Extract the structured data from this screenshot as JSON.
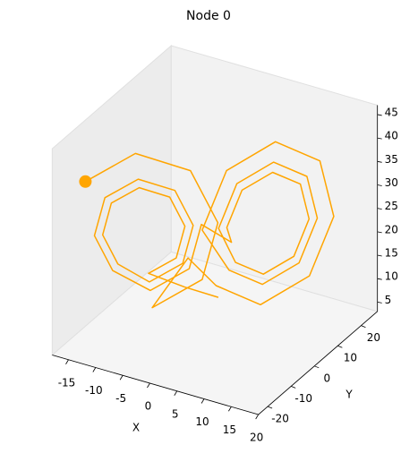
{
  "chart_data": {
    "type": "line3d",
    "title": "Node 0",
    "x_label": "X",
    "y_label": "Y",
    "color": "#ffa500",
    "xlim": [
      -18,
      20
    ],
    "ylim": [
      -24,
      27
    ],
    "zlim": [
      3,
      47
    ],
    "xticks": [
      -15,
      -10,
      -5,
      0,
      5,
      10,
      15,
      20
    ],
    "yticks": [
      -20,
      -10,
      0,
      10,
      20
    ],
    "zticks": [
      5,
      10,
      15,
      20,
      25,
      30,
      35,
      40,
      45
    ],
    "grid": false,
    "x": [
      1,
      -3,
      -8,
      -4.45,
      -3,
      -4.45,
      -8,
      -11.55,
      -13,
      -11.55,
      -8,
      -3.74,
      -2,
      -3.74,
      -8,
      -12.26,
      -14,
      -12.26,
      -8,
      -3.03,
      -1,
      3,
      3,
      4.45,
      8,
      11.55,
      13,
      11.55,
      8,
      4.45,
      2,
      3.74,
      8,
      12.26,
      14,
      12.26,
      8,
      3.74,
      0,
      2.32,
      8,
      13.68,
      16,
      13.68,
      8,
      2.32,
      -2,
      -8,
      -1.61,
      1,
      -1.61,
      -8,
      -14.39
    ],
    "y": [
      3,
      -2,
      -6,
      -2.35,
      -2,
      -5.15,
      -10,
      -13.65,
      -14,
      -10.85,
      -5.6,
      -1.22,
      -0.8,
      -4.58,
      -10.4,
      -14.78,
      -15.2,
      -11.42,
      -5.2,
      -0.09,
      0.4,
      4,
      2,
      5.15,
      10,
      13.65,
      14,
      10.85,
      6,
      2.35,
      0.8,
      4.58,
      10.4,
      14.78,
      15.2,
      11.42,
      5.6,
      1.22,
      -1.6,
      3.44,
      11.2,
      17.04,
      17.6,
      12.56,
      4.8,
      -1.04,
      -3,
      -4.4,
      2.17,
      2.8,
      -2.87,
      -11.6,
      -18.17
    ],
    "z": [
      10,
      13,
      16,
      18.9,
      26,
      33.1,
      36,
      33.1,
      26,
      18.9,
      14,
      17.5,
      26,
      34.5,
      38,
      34.5,
      26,
      17.5,
      12,
      16.1,
      26,
      22,
      26,
      33.1,
      36,
      33.1,
      26,
      18.9,
      16,
      18.9,
      26,
      34.5,
      38,
      34.5,
      26,
      17.5,
      14,
      17.5,
      26,
      37.3,
      42,
      37.3,
      26,
      14.7,
      10,
      14.7,
      20,
      8,
      13.3,
      26,
      38.7,
      44,
      38.7
    ]
  }
}
